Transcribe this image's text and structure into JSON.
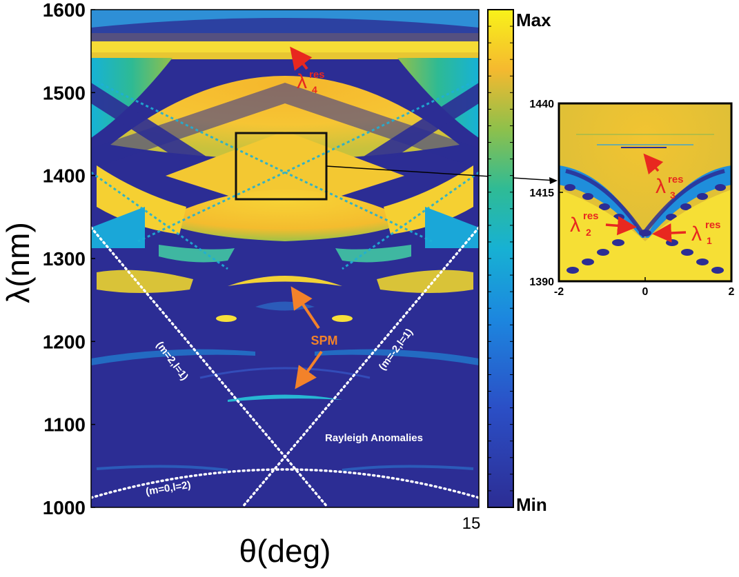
{
  "chart_data": [
    {
      "type": "heatmap",
      "panel": "main",
      "xlabel": "θ(deg)",
      "ylabel": "λ(nm)",
      "ylim": [
        1000,
        1600
      ],
      "xlim": [
        -15,
        15
      ],
      "yticks": [
        "1000",
        "1100",
        "1200",
        "1300",
        "1400",
        "1500",
        "1600"
      ],
      "xticks_visible": [
        "15"
      ],
      "colorbar": {
        "max_label": "Max",
        "min_label": "Min",
        "scale": "parula"
      },
      "annotations": {
        "lambda4": {
          "symbol": "λ",
          "sup": "res",
          "sub": "4",
          "theta": 0,
          "lambda": 1560
        },
        "spm": "SPM",
        "spm_points": [
          {
            "theta": 0,
            "lambda": 1275
          },
          {
            "theta": 0,
            "lambda": 1128
          }
        ],
        "rayleigh": "Rayleigh Anomalies",
        "ra_left": "(m=2,l=1)",
        "ra_right": "(m=-2,l=1)",
        "ra_bottom": "(m=0,l=2)"
      },
      "inset_box": {
        "theta": [
          -2,
          2
        ],
        "lambda": [
          1375,
          1455
        ]
      }
    },
    {
      "type": "heatmap",
      "panel": "inset",
      "xlim": [
        -2,
        2
      ],
      "ylim": [
        1390,
        1440
      ],
      "xticks": [
        "-2",
        "0",
        "2"
      ],
      "yticks": [
        "1390",
        "1415",
        "1440"
      ],
      "annotations": {
        "lambda1": {
          "symbol": "λ",
          "sup": "res",
          "sub": "1"
        },
        "lambda2": {
          "symbol": "λ",
          "sup": "res",
          "sub": "2"
        },
        "lambda3": {
          "symbol": "λ",
          "sup": "res",
          "sub": "3"
        }
      }
    }
  ],
  "colors": {
    "navy": "#2c2d94",
    "blue": "#1f6ed8",
    "cyan": "#16b2d6",
    "teal": "#2eba94",
    "green": "#93c04a",
    "yellow": "#f6e13a",
    "orange": "#f4b72d",
    "red_annotation": "#e8281f",
    "orange_annotation": "#f3822a"
  }
}
